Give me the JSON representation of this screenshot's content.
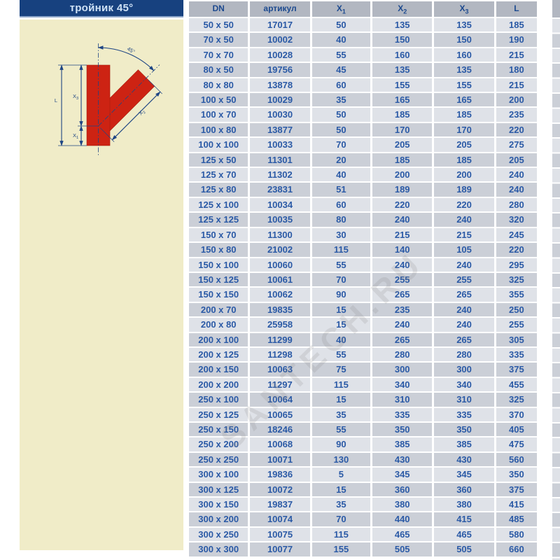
{
  "page": {
    "title": "тройник 45°",
    "watermark": "SANTECH.RU"
  },
  "colors": {
    "title_bar_bg": "#17417f",
    "title_text": "#cfe2f6",
    "panel_bg": "#f0ecc8",
    "table_header_bg": "#b2b7c1",
    "table_header_text": "#1d4a8f",
    "row_light": "#dfe2e8",
    "row_dark": "#cbcfd7",
    "cell_text": "#2b5aa6",
    "fitting_red": "#cd2313",
    "dimension_blue": "#1e4584"
  },
  "diagram": {
    "angle_label": "45°",
    "dim_l": "L",
    "dim_x1": {
      "base": "X",
      "sub": "1"
    },
    "dim_x2": {
      "base": "X",
      "sub": "2"
    },
    "dim_x3": {
      "base": "X",
      "sub": "3"
    }
  },
  "table": {
    "columns": [
      {
        "label": "DN",
        "sub": ""
      },
      {
        "label": "артикул",
        "sub": ""
      },
      {
        "label": "X",
        "sub": "1"
      },
      {
        "label": "X",
        "sub": "2"
      },
      {
        "label": "X",
        "sub": "3"
      },
      {
        "label": "L",
        "sub": ""
      }
    ],
    "rows": [
      [
        "50 x 50",
        "17017",
        "50",
        "135",
        "135",
        "185"
      ],
      [
        "70 x 50",
        "10002",
        "40",
        "150",
        "150",
        "190"
      ],
      [
        "70 x 70",
        "10028",
        "55",
        "160",
        "160",
        "215"
      ],
      [
        "80 x 50",
        "19756",
        "45",
        "135",
        "135",
        "180"
      ],
      [
        "80 x 80",
        "13878",
        "60",
        "155",
        "155",
        "215"
      ],
      [
        "100 x 50",
        "10029",
        "35",
        "165",
        "165",
        "200"
      ],
      [
        "100 x 70",
        "10030",
        "50",
        "185",
        "185",
        "235"
      ],
      [
        "100 x 80",
        "13877",
        "50",
        "170",
        "170",
        "220"
      ],
      [
        "100 x 100",
        "10033",
        "70",
        "205",
        "205",
        "275"
      ],
      [
        "125 x 50",
        "11301",
        "20",
        "185",
        "185",
        "205"
      ],
      [
        "125 x 70",
        "11302",
        "40",
        "200",
        "200",
        "240"
      ],
      [
        "125 x 80",
        "23831",
        "51",
        "189",
        "189",
        "240"
      ],
      [
        "125 x 100",
        "10034",
        "60",
        "220",
        "220",
        "280"
      ],
      [
        "125 x 125",
        "10035",
        "80",
        "240",
        "240",
        "320"
      ],
      [
        "150 x 70",
        "11300",
        "30",
        "215",
        "215",
        "245"
      ],
      [
        "150 x 80",
        "21002",
        "115",
        "140",
        "105",
        "220"
      ],
      [
        "150 x 100",
        "10060",
        "55",
        "240",
        "240",
        "295"
      ],
      [
        "150 x 125",
        "10061",
        "70",
        "255",
        "255",
        "325"
      ],
      [
        "150 x 150",
        "10062",
        "90",
        "265",
        "265",
        "355"
      ],
      [
        "200 x 70",
        "19835",
        "15",
        "235",
        "240",
        "250"
      ],
      [
        "200 x 80",
        "25958",
        "15",
        "240",
        "240",
        "255"
      ],
      [
        "200 x 100",
        "11299",
        "40",
        "265",
        "265",
        "305"
      ],
      [
        "200 x 125",
        "11298",
        "55",
        "280",
        "280",
        "335"
      ],
      [
        "200 x 150",
        "10063",
        "75",
        "300",
        "300",
        "375"
      ],
      [
        "200 x 200",
        "11297",
        "115",
        "340",
        "340",
        "455"
      ],
      [
        "250 x 100",
        "10064",
        "15",
        "310",
        "310",
        "325"
      ],
      [
        "250 x 125",
        "10065",
        "35",
        "335",
        "335",
        "370"
      ],
      [
        "250 x 150",
        "18246",
        "55",
        "350",
        "350",
        "405"
      ],
      [
        "250 x 200",
        "10068",
        "90",
        "385",
        "385",
        "475"
      ],
      [
        "250 x 250",
        "10071",
        "130",
        "430",
        "430",
        "560"
      ],
      [
        "300 x 100",
        "19836",
        "5",
        "345",
        "345",
        "350"
      ],
      [
        "300 x 125",
        "10072",
        "15",
        "360",
        "360",
        "375"
      ],
      [
        "300 x 150",
        "19837",
        "35",
        "380",
        "380",
        "415"
      ],
      [
        "300 x 200",
        "10074",
        "70",
        "440",
        "415",
        "485"
      ],
      [
        "300 x 250",
        "10075",
        "115",
        "465",
        "465",
        "580"
      ],
      [
        "300 x 300",
        "10077",
        "155",
        "505",
        "505",
        "660"
      ]
    ]
  }
}
